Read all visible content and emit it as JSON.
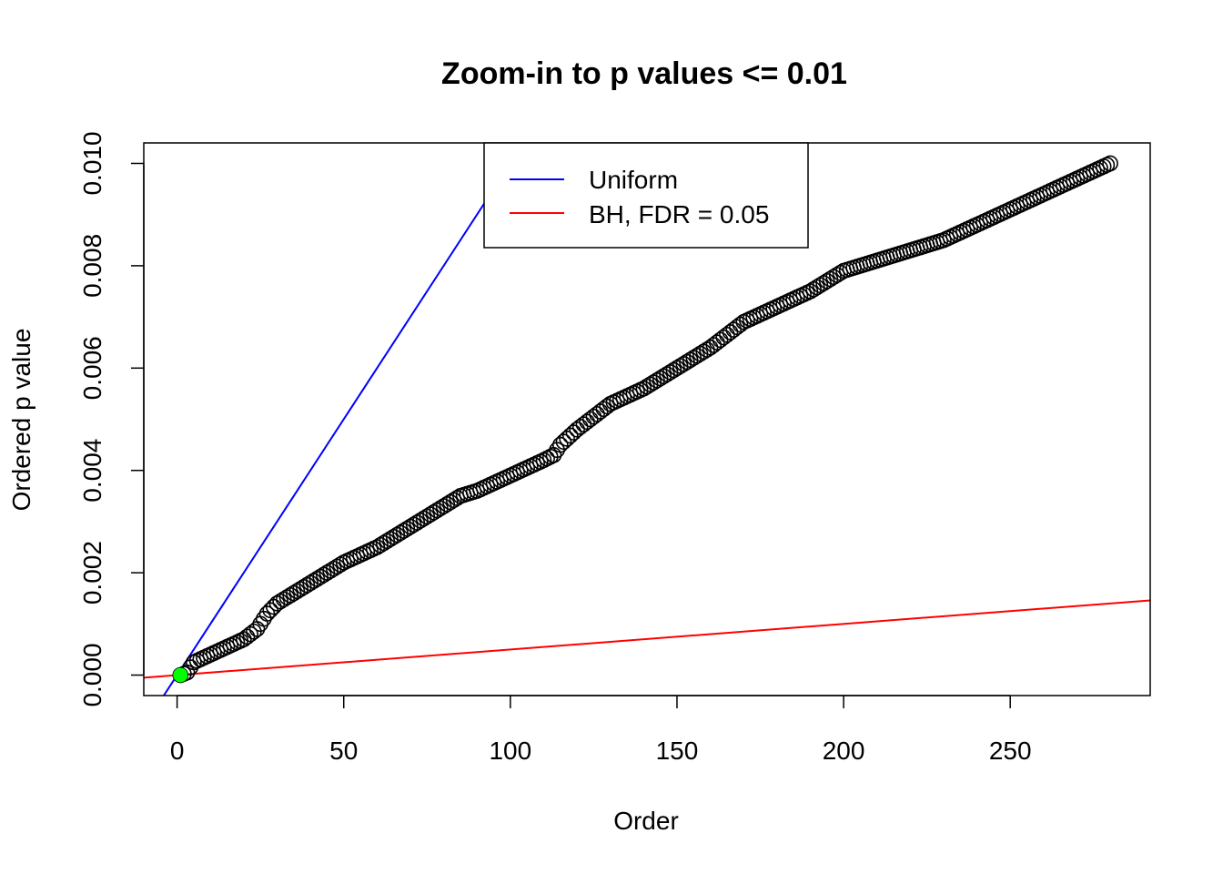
{
  "chart_data": {
    "type": "scatter",
    "title": "Zoom-in to p values <= 0.01",
    "xlabel": "Order",
    "ylabel": "Ordered p value",
    "xlim": [
      -10,
      292
    ],
    "ylim": [
      -0.0004,
      0.0104
    ],
    "xticks": [
      0,
      50,
      100,
      150,
      200,
      250
    ],
    "xtick_labels": [
      "0",
      "50",
      "100",
      "150",
      "200",
      "250"
    ],
    "yticks": [
      0,
      0.002,
      0.004,
      0.006,
      0.008,
      0.01
    ],
    "ytick_labels": [
      "0.000",
      "0.002",
      "0.004",
      "0.006",
      "0.008",
      "0.010"
    ],
    "grid": false,
    "legend_position": "top-center",
    "lines": [
      {
        "name": "Uniform",
        "color": "#0000ff",
        "intercept": 0,
        "slope": 0.0001
      },
      {
        "name": "BH, FDR = 0.05",
        "color": "#ff0000",
        "intercept": 0,
        "slope": 5e-06
      }
    ],
    "points": {
      "n": 280,
      "marker": "open-circle",
      "color": "#000000",
      "anchors": [
        [
          1,
          0.0
        ],
        [
          3,
          5e-05
        ],
        [
          5,
          0.00025
        ],
        [
          10,
          0.0004
        ],
        [
          15,
          0.00055
        ],
        [
          20,
          0.0007
        ],
        [
          24,
          0.0009
        ],
        [
          27,
          0.0012
        ],
        [
          30,
          0.0014
        ],
        [
          40,
          0.0018
        ],
        [
          50,
          0.0022
        ],
        [
          60,
          0.0025
        ],
        [
          70,
          0.0029
        ],
        [
          80,
          0.0033
        ],
        [
          85,
          0.0035
        ],
        [
          90,
          0.0036
        ],
        [
          100,
          0.0039
        ],
        [
          110,
          0.0042
        ],
        [
          113,
          0.0043
        ],
        [
          115,
          0.0045
        ],
        [
          120,
          0.0048
        ],
        [
          130,
          0.0053
        ],
        [
          140,
          0.0056
        ],
        [
          145,
          0.0058
        ],
        [
          150,
          0.006
        ],
        [
          160,
          0.0064
        ],
        [
          170,
          0.0069
        ],
        [
          180,
          0.0072
        ],
        [
          190,
          0.0075
        ],
        [
          195,
          0.0077
        ],
        [
          200,
          0.0079
        ],
        [
          210,
          0.0081
        ],
        [
          220,
          0.0083
        ],
        [
          230,
          0.0085
        ],
        [
          240,
          0.0088
        ],
        [
          250,
          0.0091
        ],
        [
          260,
          0.0094
        ],
        [
          270,
          0.0097
        ],
        [
          280,
          0.01
        ]
      ]
    },
    "highlight": {
      "color": "#00ff00",
      "values": [
        [
          1,
          0.0
        ]
      ]
    }
  }
}
